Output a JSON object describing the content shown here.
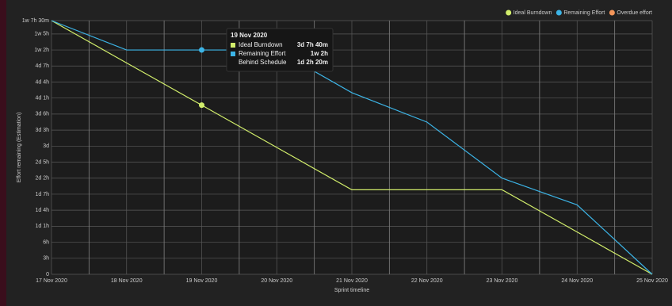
{
  "chart_data": {
    "type": "line",
    "x_label": "Sprint timeline",
    "y_label": "Effort remaining (Estimation)",
    "categories": [
      "17 Nov 2020",
      "18 Nov 2020",
      "19 Nov 2020",
      "20 Nov 2020",
      "21 Nov 2020",
      "22 Nov 2020",
      "23 Nov 2020",
      "24 Nov 2020",
      "25 Nov 2020"
    ],
    "series": [
      {
        "name": "Ideal Burndown",
        "color": "#d2ee6b",
        "values": [
          47.5,
          39.58,
          31.67,
          23.75,
          15.83,
          15.83,
          15.83,
          7.92,
          0
        ]
      },
      {
        "name": "Remaining Effort",
        "color": "#3cb4e6",
        "values": [
          47.5,
          42,
          42,
          42,
          34,
          28.5,
          18,
          13,
          0
        ]
      },
      {
        "name": "Overdue effort",
        "color": "#f4965a",
        "values": [
          null,
          null,
          null,
          null,
          null,
          null,
          null,
          null,
          null
        ]
      }
    ],
    "ylim": [
      0,
      47.5
    ],
    "yticks": [
      0,
      {
        "value": 3,
        "label": "3h"
      },
      {
        "value": 6,
        "label": "6h"
      },
      {
        "value": 9,
        "label": "1d 1h"
      },
      {
        "value": 12,
        "label": "1d 4h"
      },
      {
        "value": 15,
        "label": "1d 7h"
      },
      {
        "value": 18,
        "label": "2d 2h"
      },
      {
        "value": 21,
        "label": "2d 5h"
      },
      {
        "value": 24,
        "label": "3d"
      },
      {
        "value": 27,
        "label": "3d 3h"
      },
      {
        "value": 30,
        "label": "3d 6h"
      },
      {
        "value": 33,
        "label": "4d 1h"
      },
      {
        "value": 36,
        "label": "4d 4h"
      },
      {
        "value": 39,
        "label": "4d 7h"
      },
      {
        "value": 42,
        "label": "1w 2h"
      },
      {
        "value": 45,
        "label": "1w 5h"
      },
      {
        "value": 47.5,
        "label": "1w 7h 30m"
      }
    ],
    "grid": true,
    "legend": "top-right",
    "tooltip": {
      "category": 2,
      "title": "19 Nov 2020",
      "rows": [
        {
          "label": "Ideal Burndown",
          "value": "3d 7h 40m"
        },
        {
          "label": "Remaining Effort",
          "value": "1w 2h"
        },
        {
          "label": "Behind Schedule",
          "value": "1d 2h 20m"
        }
      ]
    }
  }
}
